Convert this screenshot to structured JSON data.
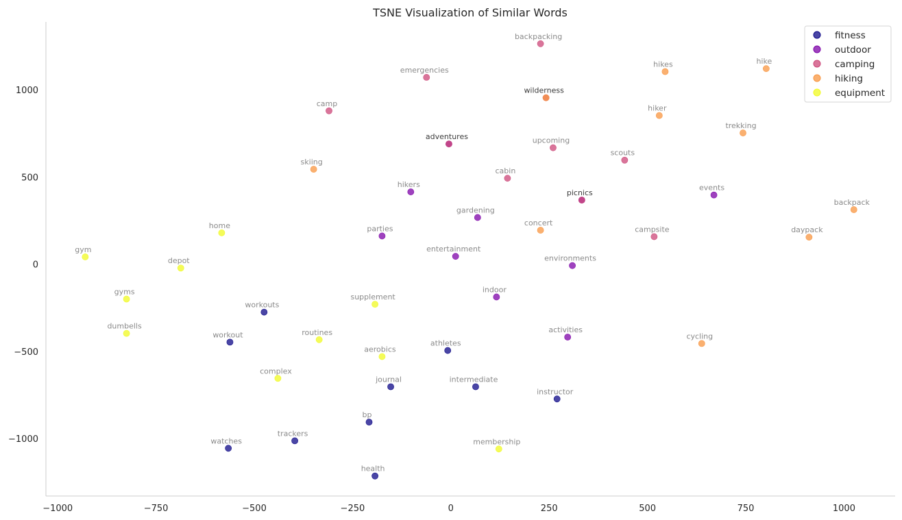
{
  "chart_data": {
    "type": "scatter",
    "title": "TSNE Visualization of Similar Words",
    "xlabel": "",
    "ylabel": "",
    "xlim": [
      -1030,
      1130
    ],
    "ylim": [
      -1330,
      1390
    ],
    "xticks": [
      -1000,
      -750,
      -500,
      -250,
      0,
      250,
      500,
      750,
      1000
    ],
    "yticks": [
      -1000,
      -500,
      0,
      500,
      1000
    ],
    "grid": false,
    "legend_position": "top-right",
    "series": [
      {
        "name": "fitness",
        "color": "#0d0887",
        "points": [
          {
            "label": "workouts",
            "x": -475,
            "y": -275
          },
          {
            "label": "workout",
            "x": -562,
            "y": -447
          },
          {
            "label": "athletes",
            "x": -8,
            "y": -495
          },
          {
            "label": "journal",
            "x": -153,
            "y": -703
          },
          {
            "label": "intermediate",
            "x": 63,
            "y": -703
          },
          {
            "label": "instructor",
            "x": 270,
            "y": -773
          },
          {
            "label": "bp",
            "x": -208,
            "y": -906
          },
          {
            "label": "trackers",
            "x": -397,
            "y": -1013
          },
          {
            "label": "watches",
            "x": -566,
            "y": -1056
          },
          {
            "label": "health",
            "x": -193,
            "y": -1215
          }
        ]
      },
      {
        "name": "outdoor",
        "color": "#7e03a8",
        "points": [
          {
            "label": "adventures",
            "x": -5,
            "y": 690
          },
          {
            "label": "hikers",
            "x": -102,
            "y": 415
          },
          {
            "label": "gardening",
            "x": 68,
            "y": 268
          },
          {
            "label": "picnics",
            "x": 333,
            "y": 368
          },
          {
            "label": "events",
            "x": 669,
            "y": 397
          },
          {
            "label": "parties",
            "x": -175,
            "y": 162
          },
          {
            "label": "entertainment",
            "x": 12,
            "y": 45
          },
          {
            "label": "environments",
            "x": 309,
            "y": -8
          },
          {
            "label": "indoor",
            "x": 116,
            "y": -188
          },
          {
            "label": "activities",
            "x": 297,
            "y": -418
          }
        ]
      },
      {
        "name": "camping",
        "color": "#cc4778",
        "points": [
          {
            "label": "backpacking",
            "x": 228,
            "y": 1265
          },
          {
            "label": "emergencies",
            "x": -62,
            "y": 1072
          },
          {
            "label": "wilderness",
            "x": 242,
            "y": 955
          },
          {
            "label": "camp",
            "x": -310,
            "y": 880
          },
          {
            "label": "adventures",
            "x": -5,
            "y": 690
          },
          {
            "label": "upcoming",
            "x": 260,
            "y": 668
          },
          {
            "label": "scouts",
            "x": 442,
            "y": 597
          },
          {
            "label": "cabin",
            "x": 144,
            "y": 493
          },
          {
            "label": "picnics",
            "x": 333,
            "y": 368
          },
          {
            "label": "campsite",
            "x": 517,
            "y": 158
          }
        ]
      },
      {
        "name": "hiking",
        "color": "#f89540",
        "points": [
          {
            "label": "hikes",
            "x": 545,
            "y": 1105
          },
          {
            "label": "hike",
            "x": 802,
            "y": 1122
          },
          {
            "label": "wilderness",
            "x": 242,
            "y": 955
          },
          {
            "label": "hiker",
            "x": 530,
            "y": 853
          },
          {
            "label": "trekking",
            "x": 743,
            "y": 753
          },
          {
            "label": "skiing",
            "x": -349,
            "y": 545
          },
          {
            "label": "concert",
            "x": 228,
            "y": 195
          },
          {
            "label": "backpack",
            "x": 1025,
            "y": 313
          },
          {
            "label": "daypack",
            "x": 911,
            "y": 155
          },
          {
            "label": "cycling",
            "x": 638,
            "y": -455
          }
        ]
      },
      {
        "name": "equipment",
        "color": "#f0f921",
        "points": [
          {
            "label": "home",
            "x": -583,
            "y": 180
          },
          {
            "label": "gym",
            "x": -930,
            "y": 42
          },
          {
            "label": "depot",
            "x": -687,
            "y": -22
          },
          {
            "label": "gyms",
            "x": -825,
            "y": -200
          },
          {
            "label": "supplement",
            "x": -193,
            "y": -230
          },
          {
            "label": "dumbells",
            "x": -825,
            "y": -397
          },
          {
            "label": "routines",
            "x": -335,
            "y": -433
          },
          {
            "label": "aerobics",
            "x": -175,
            "y": -530
          },
          {
            "label": "complex",
            "x": -440,
            "y": -655
          },
          {
            "label": "membership",
            "x": 122,
            "y": -1060
          }
        ]
      }
    ]
  }
}
